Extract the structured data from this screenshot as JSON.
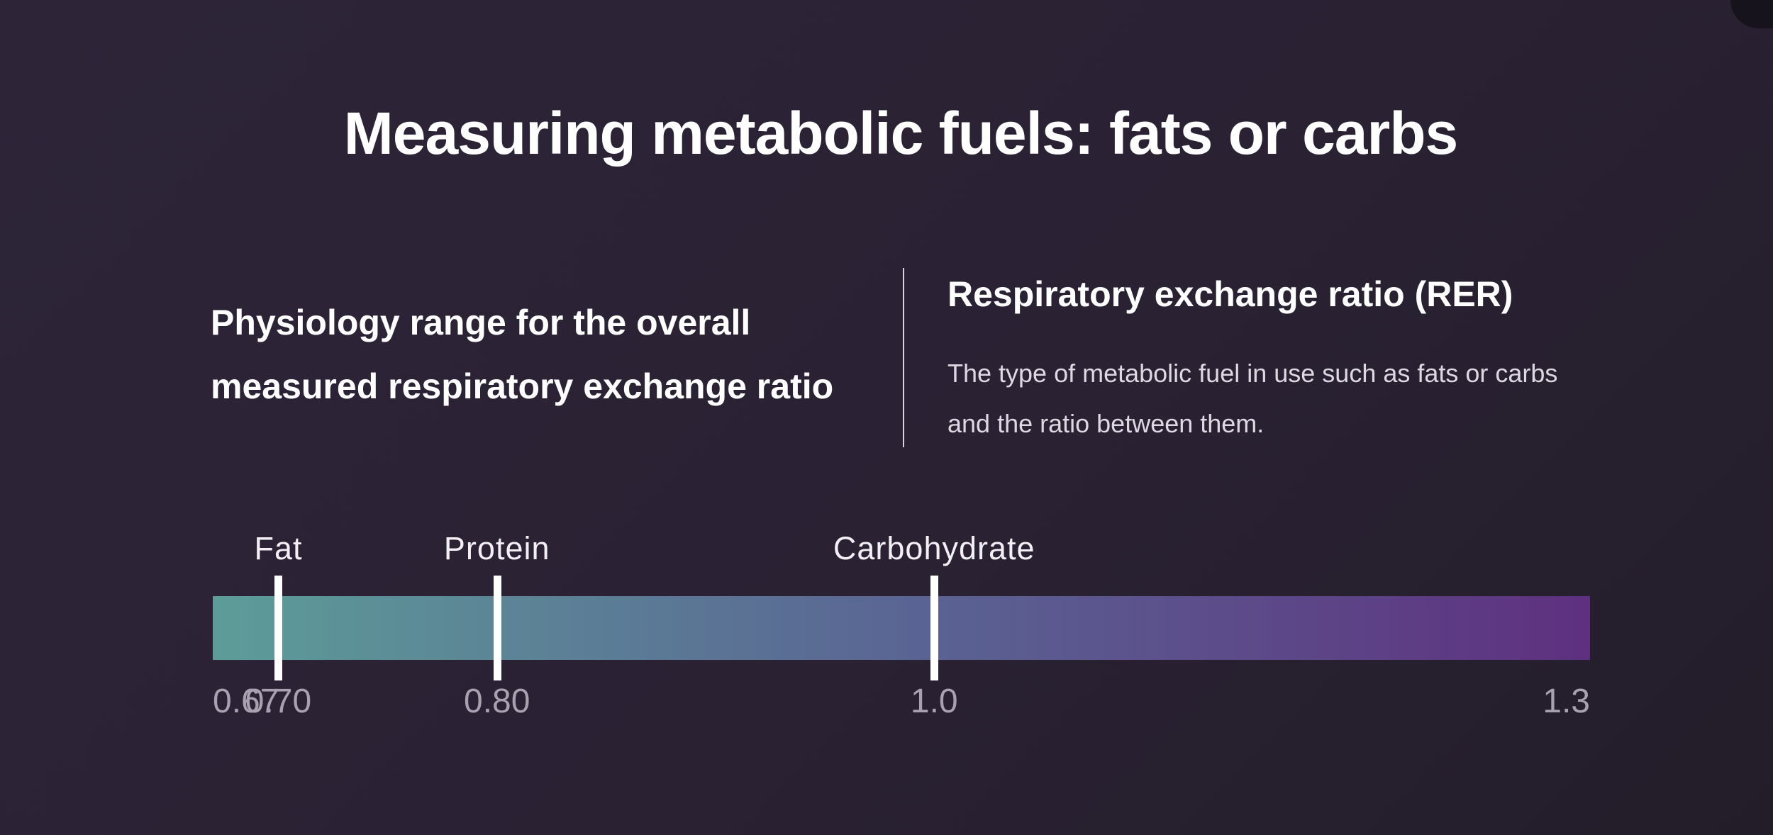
{
  "title": "Measuring metabolic fuels: fats or carbs",
  "left_panel": {
    "heading_line1": "Physiology range for the overall",
    "heading_line2": "measured respiratory exchange ratio"
  },
  "right_panel": {
    "heading": "Respiratory exchange ratio (RER)",
    "desc_line1": "The type of metabolic fuel in use such as fats or carbs",
    "desc_line2": "and the ratio between them."
  },
  "scale": {
    "min": 0.67,
    "max": 1.3,
    "gradient_colors": [
      "#5d9c98",
      "#5a6594",
      "#5e307f"
    ],
    "markers": [
      {
        "label": "Fat",
        "value": 0.7
      },
      {
        "label": "Protein",
        "value": 0.8
      },
      {
        "label": "Carbohydrate",
        "value": 1.0
      }
    ],
    "ticks": [
      {
        "label": "0.67",
        "value": 0.67
      },
      {
        "label": "0.70",
        "value": 0.7
      },
      {
        "label": "0.80",
        "value": 0.8
      },
      {
        "label": "1.0",
        "value": 1.0
      },
      {
        "label": "1.3",
        "value": 1.3
      }
    ]
  }
}
